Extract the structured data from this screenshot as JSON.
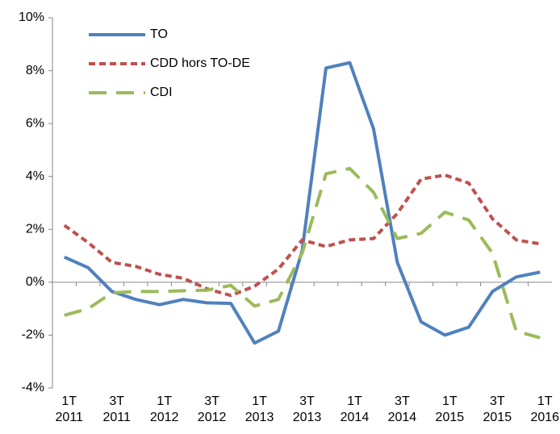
{
  "chart_data": {
    "type": "line",
    "categories": [
      "1T 2011",
      null,
      "3T 2011",
      null,
      "1T 2012",
      null,
      "3T 2012",
      null,
      "1T 2013",
      null,
      "3T 2013",
      null,
      "1T 2014",
      null,
      "3T 2014",
      null,
      "1T 2015",
      null,
      "3T 2015",
      null,
      "1T 2016"
    ],
    "series": [
      {
        "name": "TO",
        "color": "#4f81bd",
        "style": "solid",
        "values": [
          0.95,
          0.55,
          -0.35,
          -0.65,
          -0.85,
          -0.65,
          -0.78,
          -0.8,
          -2.3,
          -1.85,
          1.2,
          8.1,
          8.3,
          5.8,
          0.75,
          -1.5,
          -2.0,
          -1.7,
          -0.35,
          0.2,
          0.38
        ]
      },
      {
        "name": "CDD hors TO-DE",
        "color": "#c0504d",
        "style": "dashed",
        "values": [
          2.15,
          1.5,
          0.75,
          0.6,
          0.3,
          0.15,
          -0.25,
          -0.5,
          -0.15,
          0.5,
          1.6,
          1.35,
          1.6,
          1.65,
          2.6,
          3.9,
          4.05,
          3.75,
          2.4,
          1.6,
          1.45
        ]
      },
      {
        "name": "CDI",
        "color": "#9bbb59",
        "style": "longdash",
        "values": [
          -1.25,
          -1.0,
          -0.4,
          -0.35,
          -0.35,
          -0.32,
          -0.3,
          -0.12,
          -0.9,
          -0.65,
          1.1,
          4.1,
          4.3,
          3.4,
          1.65,
          1.85,
          2.65,
          2.35,
          1.1,
          -1.85,
          -2.1
        ]
      }
    ],
    "ylim": [
      -4,
      10
    ],
    "yticks": [
      {
        "value": -4,
        "label": "-4%"
      },
      {
        "value": -2,
        "label": "-2%"
      },
      {
        "value": 0,
        "label": "0%"
      },
      {
        "value": 2,
        "label": "2%"
      },
      {
        "value": 4,
        "label": "4%"
      },
      {
        "value": 6,
        "label": "6%"
      },
      {
        "value": 8,
        "label": "8%"
      },
      {
        "value": 10,
        "label": "10%"
      }
    ],
    "legend": "upper left"
  }
}
